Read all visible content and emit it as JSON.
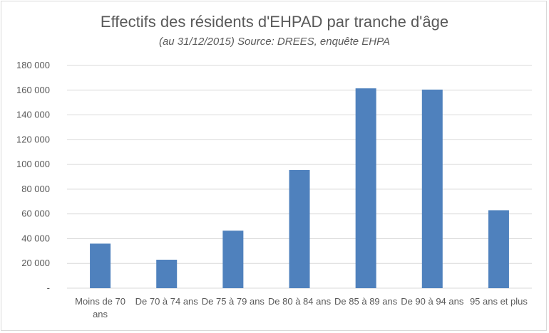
{
  "chart_data": {
    "type": "bar",
    "title": "Effectifs des résidents d'EHPAD par tranche d'âge",
    "subtitle": "(au 31/12/2015) Source: DREES, enquête EHPA",
    "categories": [
      [
        "Moins de 70",
        "ans"
      ],
      [
        "De 70 à 74 ans"
      ],
      [
        "De 75 à 79 ans"
      ],
      [
        "De 80 à 84 ans"
      ],
      [
        "De 85 à 89 ans"
      ],
      [
        "De 90 à 94 ans"
      ],
      [
        "95 ans et plus"
      ]
    ],
    "values": [
      36000,
      23000,
      46500,
      95500,
      161500,
      160500,
      63000
    ],
    "ylim": [
      0,
      180000
    ],
    "yticks": [
      0,
      20000,
      40000,
      60000,
      80000,
      100000,
      120000,
      140000,
      160000,
      180000
    ],
    "ytick_labels": [
      "-",
      "20 000",
      "40 000",
      "60 000",
      "80 000",
      "100 000",
      "120 000",
      "140 000",
      "160 000",
      "180 000"
    ],
    "grid": true,
    "bar_color": "#4f81bd",
    "grid_color": "#d9d9d9"
  }
}
